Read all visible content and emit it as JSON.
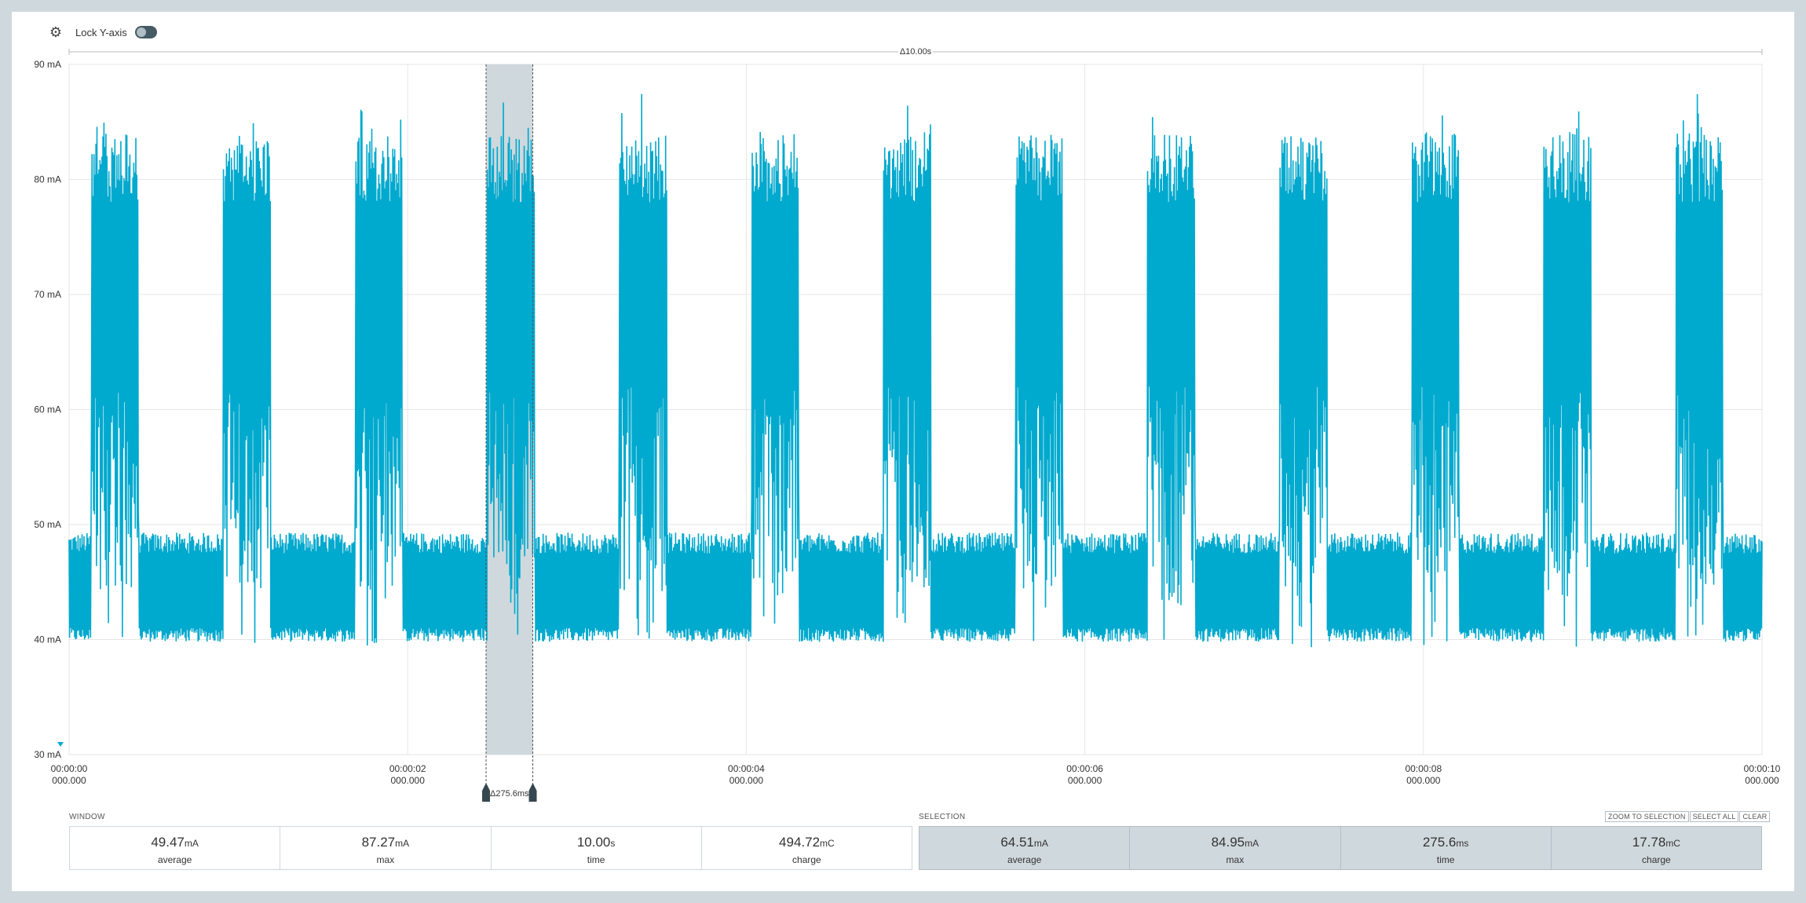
{
  "toolbar": {
    "gear_icon": "gear-icon",
    "lock_label": "Lock Y-axis",
    "lock_state": false
  },
  "chart_data": {
    "type": "line",
    "title": "",
    "xlabel": "",
    "ylabel": "",
    "ylim": [
      30,
      90
    ],
    "xlim": [
      0,
      10
    ],
    "y_ticks": [
      "90 mA",
      "80 mA",
      "70 mA",
      "60 mA",
      "50 mA",
      "40 mA",
      "30 mA"
    ],
    "x_ticks": [
      {
        "time": "00:00:00",
        "sub": "000.000"
      },
      {
        "time": "00:00:02",
        "sub": "000.000"
      },
      {
        "time": "00:00:04",
        "sub": "000.000"
      },
      {
        "time": "00:00:06",
        "sub": "000.000"
      },
      {
        "time": "00:00:08",
        "sub": "000.000"
      },
      {
        "time": "00:00:10",
        "sub": "000.000"
      }
    ],
    "window_delta": "Δ10.00s",
    "selection_delta": "Δ275.6ms",
    "selection_range_s": [
      2.463,
      2.739
    ],
    "series": [
      {
        "color": "#00a9ce",
        "burst_starts_s": [
          0.13,
          0.91,
          1.69,
          2.47,
          3.25,
          4.03,
          4.81,
          5.59,
          6.37,
          7.15,
          7.93,
          8.71,
          9.49
        ],
        "burst_duration_s": 0.28,
        "idle_range_mA": [
          40,
          49
        ],
        "burst_range_mA": [
          38,
          86
        ]
      }
    ]
  },
  "window": {
    "label": "WINDOW",
    "stats": [
      {
        "value": "49.47",
        "unit": "mA",
        "label": "average"
      },
      {
        "value": "87.27",
        "unit": "mA",
        "label": "max"
      },
      {
        "value": "10.00",
        "unit": "s",
        "label": "time"
      },
      {
        "value": "494.72",
        "unit": "mC",
        "label": "charge"
      }
    ]
  },
  "selection": {
    "label": "SELECTION",
    "buttons": [
      "ZOOM TO SELECTION",
      "SELECT ALL",
      "CLEAR"
    ],
    "stats": [
      {
        "value": "64.51",
        "unit": "mA",
        "label": "average"
      },
      {
        "value": "84.95",
        "unit": "mA",
        "label": "max"
      },
      {
        "value": "275.6",
        "unit": "ms",
        "label": "time"
      },
      {
        "value": "17.78",
        "unit": "mC",
        "label": "charge"
      }
    ]
  }
}
